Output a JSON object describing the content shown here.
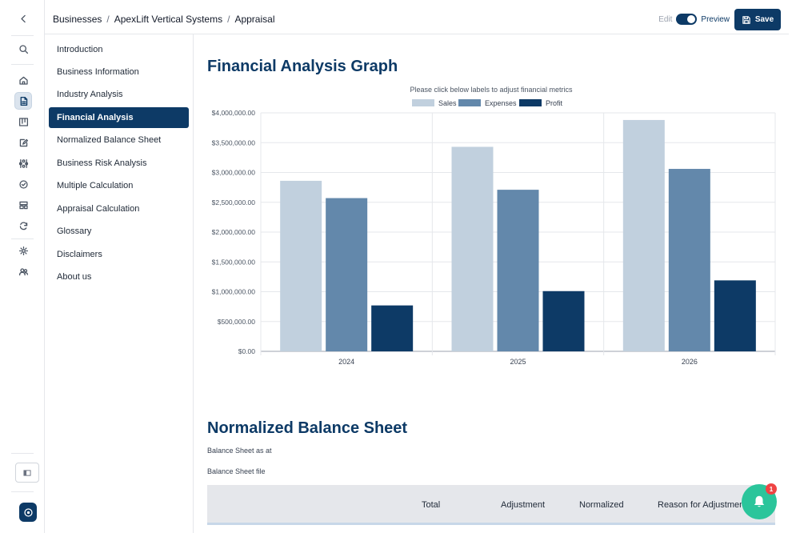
{
  "breadcrumb": [
    "Businesses",
    "ApexLift Vertical Systems",
    "Appraisal"
  ],
  "mode": {
    "edit_label": "Edit",
    "preview_label": "Preview"
  },
  "toolbar": {
    "save_label": "Save"
  },
  "rail": {
    "icons": [
      "chevron-left-icon",
      "search-icon",
      "home-icon",
      "document-icon",
      "kanban-icon",
      "edit-icon",
      "network-icon",
      "check-circle-icon",
      "layout-icon",
      "refresh-icon",
      "settings-icon",
      "users-icon"
    ],
    "active": "document-icon"
  },
  "toc": {
    "items": [
      "Introduction",
      "Business Information",
      "Industry Analysis",
      "Financial Analysis",
      "Normalized Balance Sheet",
      "Business Risk Analysis",
      "Multiple Calculation",
      "Appraisal Calculation",
      "Glossary",
      "Disclaimers",
      "About us"
    ],
    "active": "Financial Analysis"
  },
  "financial": {
    "title": "Financial Analysis Graph"
  },
  "chart_data": {
    "type": "bar",
    "subtitle": "Please click below labels to adjust financial metrics",
    "categories": [
      "2024",
      "2025",
      "2026"
    ],
    "series": [
      {
        "name": "Sales",
        "values": [
          2860000,
          3430000,
          3880000
        ],
        "color": "#c1d0de"
      },
      {
        "name": "Expenses",
        "values": [
          2570000,
          2710000,
          3060000
        ],
        "color": "#6388ab"
      },
      {
        "name": "Profit",
        "values": [
          770000,
          1010000,
          1190000
        ],
        "color": "#0d3a66"
      }
    ],
    "yticks": [
      "$0.00",
      "$500,000.00",
      "$1,000,000.00",
      "$1,500,000.00",
      "$2,000,000.00",
      "$2,500,000.00",
      "$3,000,000.00",
      "$3,500,000.00",
      "$4,000,000.00"
    ],
    "ylim": [
      0,
      4000000
    ],
    "legend_position": "top-center",
    "grid": true
  },
  "balance": {
    "title": "Normalized Balance Sheet",
    "as_at_label": "Balance Sheet as at",
    "file_label": "Balance Sheet file",
    "columns": [
      "Total",
      "Adjustment",
      "Normalized",
      "Reason for Adjustment"
    ]
  },
  "notifications": {
    "count": "1"
  },
  "colors": {
    "primary": "#0d3a66",
    "accent": "#2bc59b",
    "badge": "#ef4444"
  }
}
